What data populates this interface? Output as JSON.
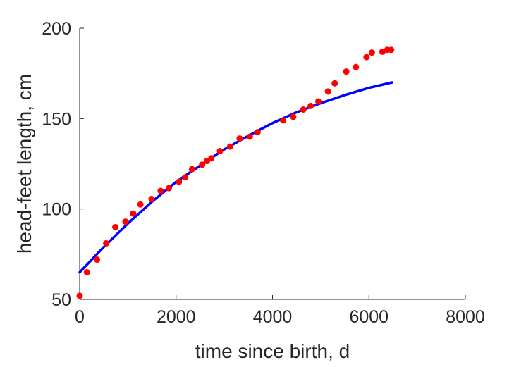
{
  "chart_data": {
    "type": "scatter",
    "title": "",
    "xlabel": "time since birth, d",
    "ylabel": "head-feet length, cm",
    "xlim": [
      0,
      8000
    ],
    "ylim": [
      50,
      200
    ],
    "xticks": [
      0,
      2000,
      4000,
      6000,
      8000
    ],
    "xtick_labels": [
      "0",
      "2000",
      "4000",
      "6000",
      "8000"
    ],
    "yticks": [
      50,
      100,
      150,
      200
    ],
    "ytick_labels": [
      "50",
      "100",
      "150",
      "200"
    ],
    "grid": false,
    "legend": "none",
    "series": [
      {
        "kind": "scatter",
        "color": "#ff0000",
        "points": [
          [
            0,
            52
          ],
          [
            150,
            65
          ],
          [
            360,
            72
          ],
          [
            550,
            81
          ],
          [
            740,
            90
          ],
          [
            950,
            93
          ],
          [
            1110,
            97.5
          ],
          [
            1260,
            102.5
          ],
          [
            1490,
            105.5
          ],
          [
            1680,
            110
          ],
          [
            1850,
            111.5
          ],
          [
            2060,
            115
          ],
          [
            2190,
            117.5
          ],
          [
            2330,
            122
          ],
          [
            2540,
            124.5
          ],
          [
            2640,
            126.5
          ],
          [
            2730,
            128
          ],
          [
            2910,
            132
          ],
          [
            3120,
            134.5
          ],
          [
            3320,
            139
          ],
          [
            3530,
            140
          ],
          [
            3690,
            142.5
          ],
          [
            4220,
            149
          ],
          [
            4430,
            151
          ],
          [
            4640,
            155
          ],
          [
            4790,
            157
          ],
          [
            4950,
            159.5
          ],
          [
            5150,
            165
          ],
          [
            5290,
            169.5
          ],
          [
            5530,
            176
          ],
          [
            5730,
            178.5
          ],
          [
            5950,
            184
          ],
          [
            6060,
            186.5
          ],
          [
            6280,
            187
          ],
          [
            6380,
            188
          ],
          [
            6460,
            188
          ]
        ]
      },
      {
        "kind": "line",
        "color": "#0000ff",
        "points": [
          [
            0,
            65
          ],
          [
            500,
            79
          ],
          [
            1000,
            92
          ],
          [
            1500,
            104
          ],
          [
            2000,
            115
          ],
          [
            2500,
            124
          ],
          [
            3000,
            133
          ],
          [
            3500,
            140.5
          ],
          [
            4000,
            147.5
          ],
          [
            4500,
            153.5
          ],
          [
            5000,
            158.5
          ],
          [
            5500,
            163
          ],
          [
            6000,
            167
          ],
          [
            6480,
            170
          ]
        ]
      }
    ]
  }
}
